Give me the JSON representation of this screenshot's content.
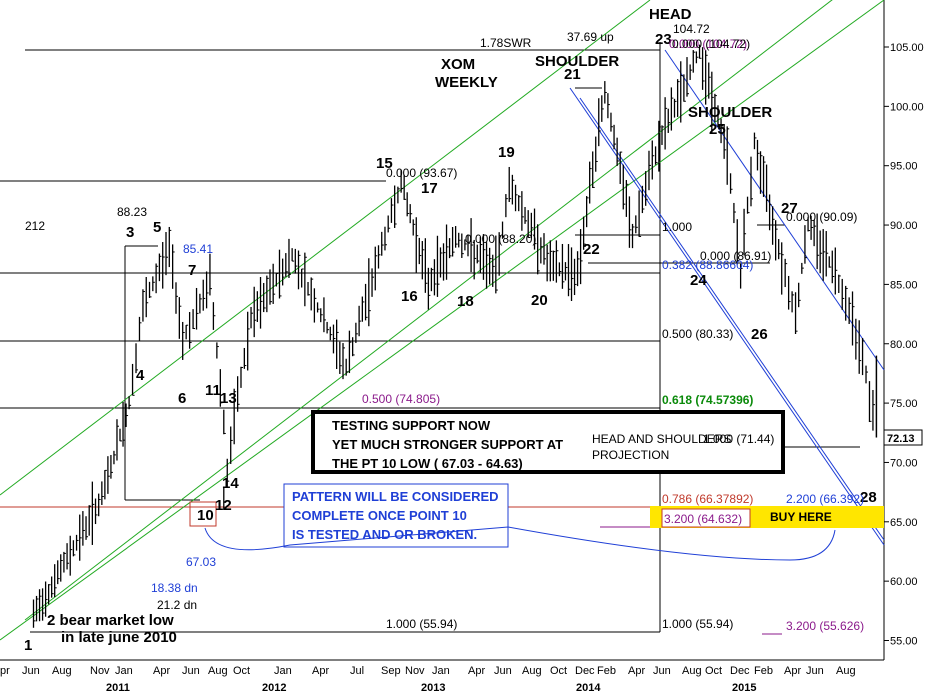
{
  "chart_data": {
    "type": "ohlc",
    "title": "XOM WEEKLY",
    "title_lines": [
      "XOM",
      "WEEKLY"
    ],
    "ylim": [
      54,
      108
    ],
    "y_ticks": [
      "105.00",
      "100.00",
      "95.00",
      "90.00",
      "85.00",
      "80.00",
      "75.00",
      "70.00",
      "65.00",
      "60.00",
      "55.00"
    ],
    "last_price": "72.13",
    "x_months": [
      "pr",
      "Jun",
      "Aug",
      "Nov",
      "Jan",
      "Apr",
      "Jun",
      "Aug",
      "Oct",
      "Jan",
      "Apr",
      "Jul",
      "Sep",
      "Nov",
      "Jan",
      "Apr",
      "Jun",
      "Aug",
      "Oct",
      "Dec",
      "Feb",
      "Apr",
      "Jun",
      "Aug",
      "Oct",
      "Dec",
      "Feb",
      "Apr",
      "Jun",
      "Aug"
    ],
    "x_years": [
      "2011",
      "2012",
      "2013",
      "2014",
      "2015"
    ],
    "price_points": [
      {
        "t": "2010-06",
        "y": 57.0
      },
      {
        "t": "2010-08",
        "y": 61.0
      },
      {
        "t": "2010-11",
        "y": 67.0
      },
      {
        "t": "2011-01",
        "y": 75.0
      },
      {
        "t": "2011-02",
        "y": 83.0
      },
      {
        "t": "2011-04",
        "y": 88.2
      },
      {
        "t": "2011-05",
        "y": 80.5
      },
      {
        "t": "2011-06",
        "y": 82.5
      },
      {
        "t": "2011-07",
        "y": 85.4
      },
      {
        "t": "2011-08",
        "y": 73.5
      },
      {
        "t": "2011-08",
        "y": 67.0
      },
      {
        "t": "2011-09",
        "y": 75.5
      },
      {
        "t": "2011-10",
        "y": 82.0
      },
      {
        "t": "2012-01",
        "y": 87.5
      },
      {
        "t": "2012-05",
        "y": 78.0
      },
      {
        "t": "2012-09",
        "y": 93.7
      },
      {
        "t": "2012-11",
        "y": 85.0
      },
      {
        "t": "2013-01",
        "y": 89.0
      },
      {
        "t": "2013-04",
        "y": 86.0
      },
      {
        "t": "2013-05",
        "y": 93.5
      },
      {
        "t": "2013-08",
        "y": 86.5
      },
      {
        "t": "2013-10",
        "y": 86.0
      },
      {
        "t": "2013-12",
        "y": 101.5
      },
      {
        "t": "2014-02",
        "y": 89.0
      },
      {
        "t": "2014-04",
        "y": 97.0
      },
      {
        "t": "2014-07",
        "y": 104.7
      },
      {
        "t": "2014-09",
        "y": 96.0
      },
      {
        "t": "2014-10",
        "y": 86.0
      },
      {
        "t": "2014-11",
        "y": 97.0
      },
      {
        "t": "2015-01",
        "y": 87.0
      },
      {
        "t": "2015-02",
        "y": 82.5
      },
      {
        "t": "2015-03",
        "y": 90.1
      },
      {
        "t": "2015-05",
        "y": 86.0
      },
      {
        "t": "2015-06",
        "y": 83.0
      },
      {
        "t": "2015-07",
        "y": 79.0
      },
      {
        "t": "2015-08",
        "y": 72.1
      }
    ],
    "wave_labels": [
      "1",
      "2 bear market low",
      "in late june 2010",
      "3",
      "4",
      "5",
      "6",
      "7",
      "10",
      "11",
      "12",
      "13",
      "14",
      "15",
      "16",
      "17",
      "18",
      "19",
      "20",
      "21",
      "22",
      "23",
      "24",
      "25",
      "26",
      "27",
      "28"
    ],
    "structure_labels": {
      "head": "HEAD",
      "shoulder_left": "SHOULDER",
      "shoulder_right": "SHOULDER",
      "head_shoulders_projection": "HEAD AND SHOULDERS",
      "projection": "PROJECTION"
    },
    "fib_labels": [
      "212",
      "88.23",
      "85.41",
      "1.78SWR",
      "37.69 up",
      "104.72",
      "0.000 (104.72)",
      "0.000 (104.72)",
      "0.000 (93.67)",
      "0.000 (88.20)",
      "1.000",
      "0.382 (88.86604)",
      "0.000 (86.91)",
      "0.000 (90.09)",
      "0.500 (80.33)",
      "0.500 (74.805)",
      "0.618 (74.57396)",
      "1.000 (71.44)",
      "0.786 (66.37892)",
      "2.200 (66.392)",
      "3.200 (64.632)",
      "1.000 (55.94)",
      "1.000 (55.94)",
      "3.200 (55.626)",
      "67.03",
      "18.38 dn",
      "21.2 dn"
    ],
    "support_box": [
      "TESTING SUPPORT NOW",
      "YET MUCH STRONGER SUPPORT AT",
      "THE PT 10 LOW ( 67.03 - 64.63)"
    ],
    "pattern_note": [
      "PATTERN WILL BE CONSIDERED",
      "COMPLETE ONCE POINT 10",
      "IS TESTED AND OR BROKEN."
    ],
    "buy_label": "BUY HERE",
    "colors": {
      "channel": "#22aa22",
      "downchannel": "#1f3fd6",
      "support_line": "#c0392b",
      "fib_purple": "#8b1a8b",
      "fib_green": "#0a8a0a",
      "fib_red": "#c0392b",
      "buy_zone": "#ffe600"
    }
  }
}
